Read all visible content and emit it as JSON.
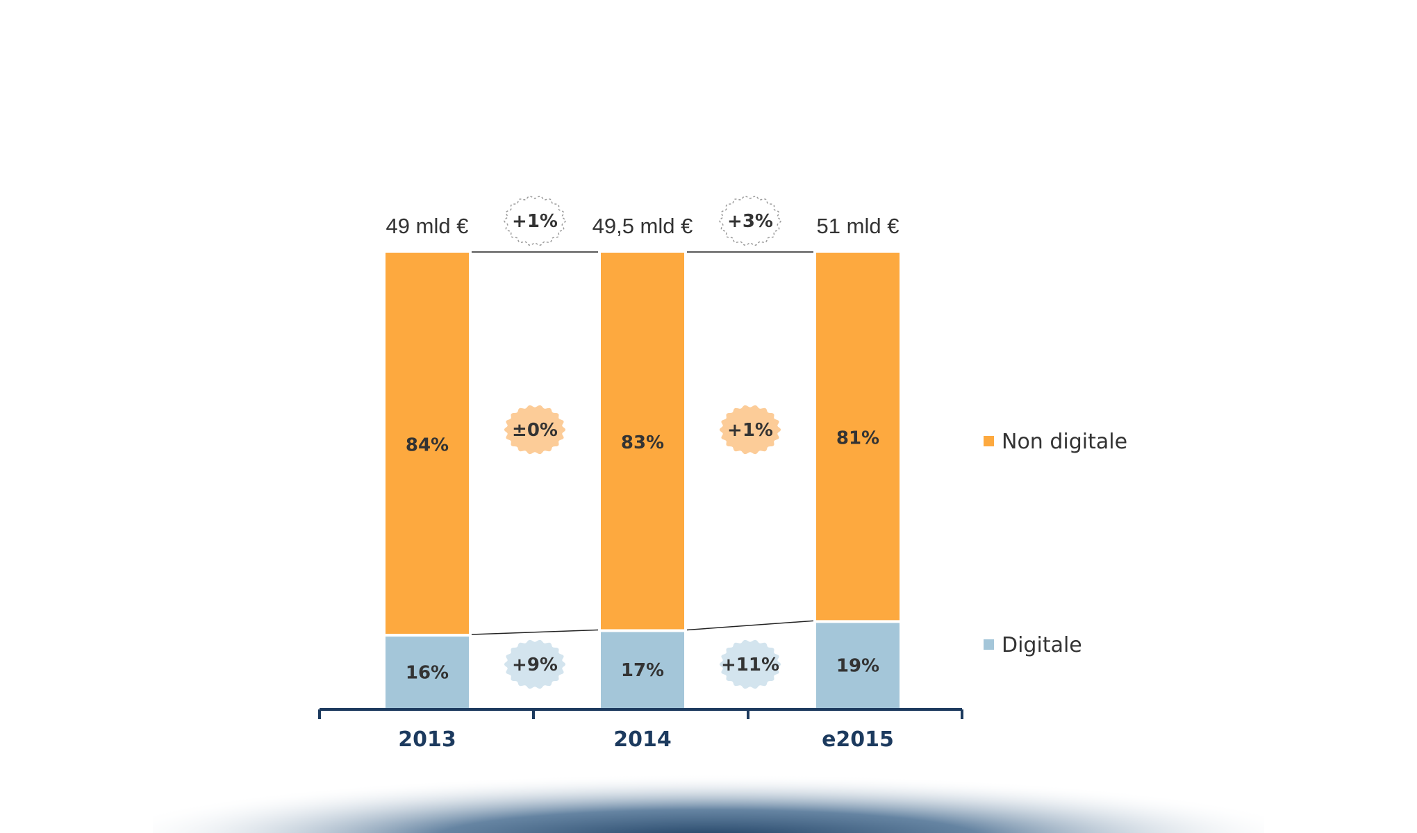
{
  "colors": {
    "non_digitale": "#fda93f",
    "digitale": "#a4c6d9",
    "axis": "#1c3a5e",
    "badge_total": "#ffffff",
    "badge_non_digitale": "#fccc98",
    "badge_digitale": "#d3e4ee"
  },
  "chart_data": {
    "type": "bar",
    "stacked": true,
    "categories": [
      "2013",
      "2014",
      "e2015"
    ],
    "series": [
      {
        "name": "Digitale",
        "values": [
          16,
          17,
          19
        ],
        "labels": [
          "16%",
          "17%",
          "19%"
        ]
      },
      {
        "name": "Non digitale",
        "values": [
          84,
          83,
          81
        ],
        "labels": [
          "84%",
          "83%",
          "81%"
        ]
      }
    ],
    "totals": [
      "49 mld €",
      "49,5 mld €",
      "51 mld €"
    ],
    "growth": {
      "total": [
        "+1%",
        "+3%"
      ],
      "non_digitale": [
        "±0%",
        "+1%"
      ],
      "digitale": [
        "+9%",
        "+11%"
      ]
    },
    "legend": {
      "placement": "right",
      "items": [
        "Non digitale",
        "Digitale"
      ]
    },
    "xlabel": "",
    "ylabel": "",
    "ylim": [
      0,
      100
    ]
  }
}
